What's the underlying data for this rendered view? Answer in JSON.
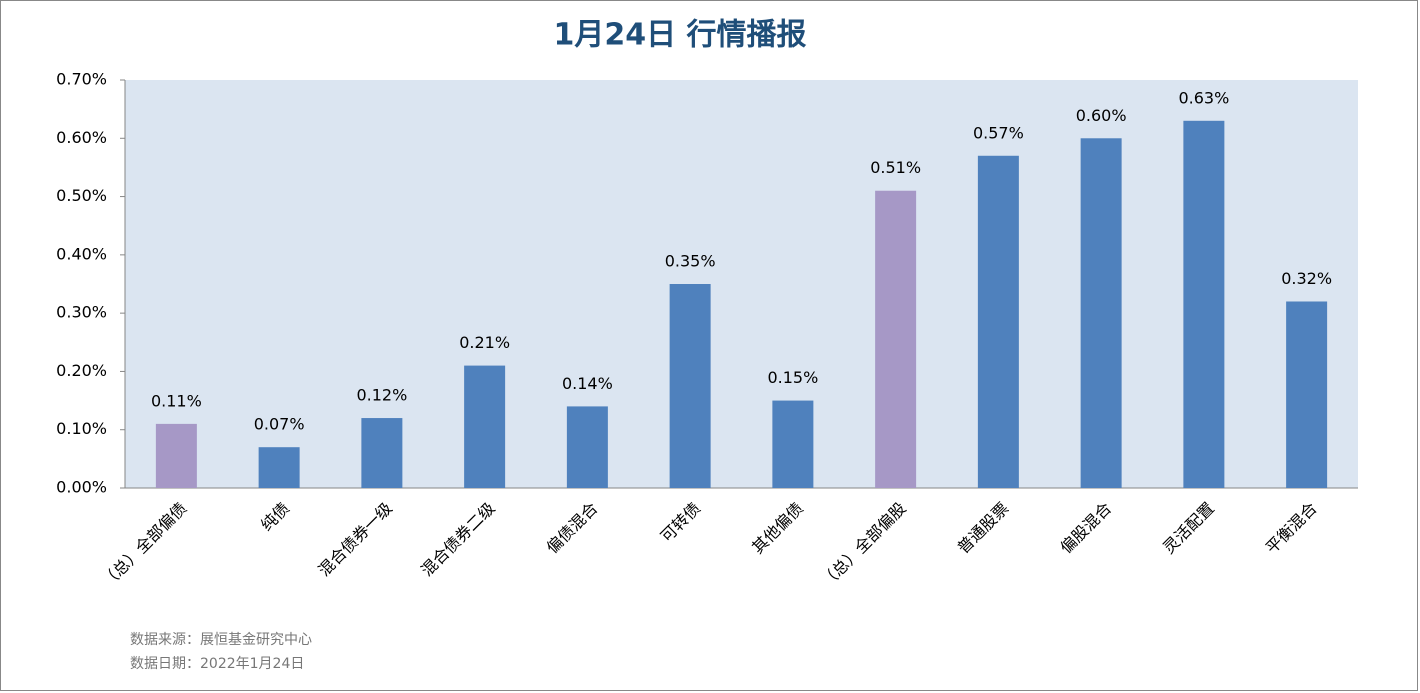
{
  "chart_data": {
    "type": "bar",
    "title": "1月24日  行情播报",
    "categories": [
      "（总）全部偏债",
      "纯债",
      "混合债券一级",
      "混合债券二级",
      "偏债混合",
      "可转债",
      "其他偏债",
      "（总）全部偏股",
      "普通股票",
      "偏股混合",
      "灵活配置",
      "平衡混合"
    ],
    "values": [
      0.11,
      0.07,
      0.12,
      0.21,
      0.14,
      0.35,
      0.15,
      0.51,
      0.57,
      0.6,
      0.63,
      0.32
    ],
    "value_labels": [
      "0.11%",
      "0.07%",
      "0.12%",
      "0.21%",
      "0.14%",
      "0.35%",
      "0.15%",
      "0.51%",
      "0.57%",
      "0.60%",
      "0.63%",
      "0.32%"
    ],
    "colors": [
      "#a698c6",
      "#4f81bd",
      "#4f81bd",
      "#4f81bd",
      "#4f81bd",
      "#4f81bd",
      "#4f81bd",
      "#a698c6",
      "#4f81bd",
      "#4f81bd",
      "#4f81bd",
      "#4f81bd"
    ],
    "ylim": [
      0,
      0.7
    ],
    "yticks": [
      {
        "value": 0,
        "label": "0.00%"
      },
      {
        "value": 0.1,
        "label": "0.10%"
      },
      {
        "value": 0.2,
        "label": "0.20%"
      },
      {
        "value": 0.3,
        "label": "0.30%"
      },
      {
        "value": 0.4,
        "label": "0.40%"
      },
      {
        "value": 0.5,
        "label": "0.50%"
      },
      {
        "value": 0.6,
        "label": "0.60%"
      },
      {
        "value": 0.7,
        "label": "0.70%"
      }
    ],
    "grid": false,
    "source": "数据来源：展恒基金研究中心",
    "date_note": "数据日期：2022年1月24日"
  }
}
